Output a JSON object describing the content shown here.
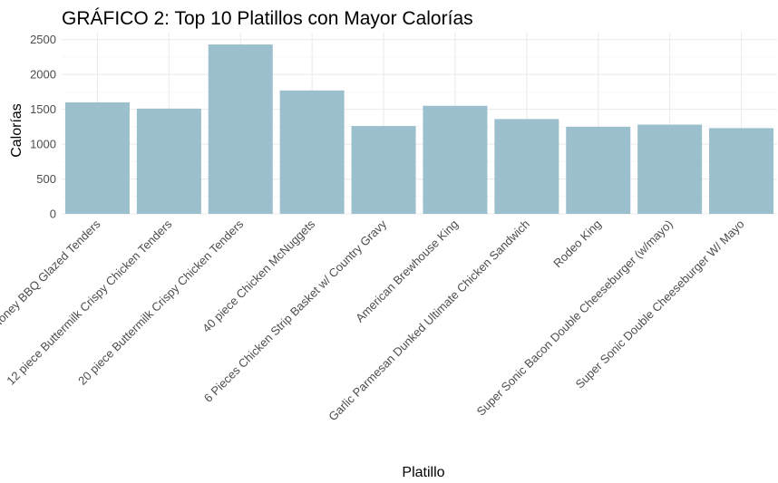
{
  "chart_data": {
    "type": "bar",
    "title": "GRÁFICO 2: Top 10 Platillos con Mayor Calorías",
    "xlabel": "Platillo",
    "ylabel": "Calorías",
    "ylim": [
      0,
      2600
    ],
    "yticks": [
      0,
      500,
      1000,
      1500,
      2000,
      2500
    ],
    "grid": true,
    "bar_color": "#9bbfcc",
    "categories": [
      "Honey BBQ Glazed Tenders",
      "12 piece Buttermilk Crispy Chicken Tenders",
      "20 piece Buttermilk Crispy Chicken Tenders",
      "40 piece Chicken McNuggets",
      "6 Pieces Chicken Strip Basket w/ Country Gravy",
      "American Brewhouse King",
      "Garlic Parmesan Dunked Ultimate Chicken Sandwich",
      "Rodeo King",
      "Super Sonic Bacon Double Cheeseburger (w/mayo)",
      "Super Sonic Double Cheeseburger W/ Mayo"
    ],
    "values": [
      1600,
      1510,
      2430,
      1770,
      1260,
      1550,
      1360,
      1250,
      1280,
      1230
    ]
  }
}
